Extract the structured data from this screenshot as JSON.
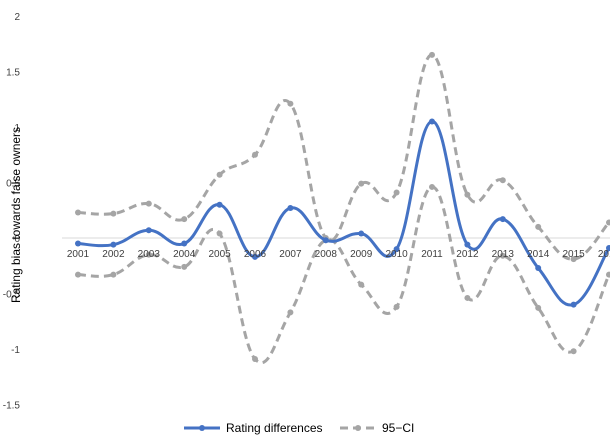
{
  "chart_data": {
    "type": "line",
    "title": "",
    "xlabel": "",
    "ylabel": "Rating bias towards  false owners",
    "ylim": [
      -1.5,
      2
    ],
    "yticks": [
      "-1.5",
      "-1",
      "-0.5",
      "0",
      "0.5",
      "1",
      "1.5",
      "2"
    ],
    "yticks_values": [
      -1.5,
      -1,
      -0.5,
      0,
      0.5,
      1,
      1.5,
      2
    ],
    "categories": [
      "2001",
      "2002",
      "2003",
      "2004",
      "2005",
      "2006",
      "2007",
      "2008",
      "2009",
      "2010",
      "2011",
      "2012",
      "2013",
      "2014",
      "2015",
      "2016"
    ],
    "grid": false,
    "legend_position": "bottom",
    "series": [
      {
        "name": "Rating differences",
        "color": "#4472c4",
        "style": "solid",
        "values": [
          -0.05,
          -0.06,
          0.07,
          -0.05,
          0.3,
          -0.17,
          0.27,
          -0.02,
          0.04,
          -0.1,
          1.05,
          -0.06,
          0.17,
          -0.27,
          -0.6,
          -0.09
        ]
      },
      {
        "name": "95-CI",
        "color": "#a5a5a5",
        "style": "dashed",
        "values": [
          0.23,
          0.22,
          0.31,
          0.17,
          0.57,
          0.75,
          1.21,
          0.0,
          0.49,
          0.41,
          1.65,
          0.39,
          0.52,
          0.1,
          -0.19,
          0.14
        ]
      },
      {
        "name": "",
        "color": "#a5a5a5",
        "style": "dashed",
        "values": [
          -0.33,
          -0.33,
          -0.15,
          -0.26,
          0.04,
          -1.09,
          -0.67,
          -0.02,
          -0.42,
          -0.62,
          0.46,
          -0.54,
          -0.16,
          -0.63,
          -1.02,
          -0.33
        ]
      }
    ],
    "legend": [
      {
        "label": "Rating differences",
        "color": "#4472c4",
        "style": "solid"
      },
      {
        "label": "95−CI",
        "color": "#a5a5a5",
        "style": "dashed"
      }
    ]
  }
}
